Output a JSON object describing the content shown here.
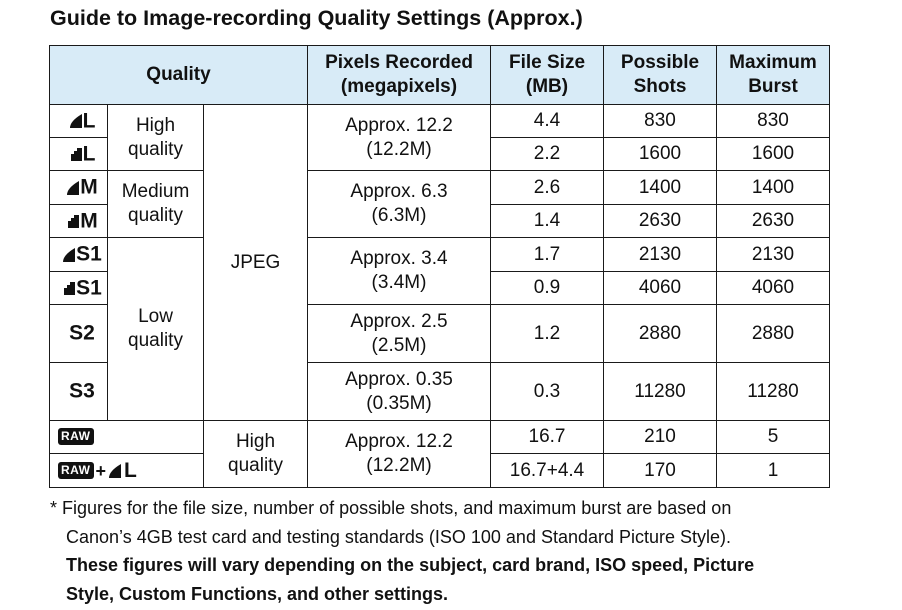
{
  "title": "Guide to Image-recording Quality Settings (Approx.)",
  "headers": {
    "quality": "Quality",
    "pixels_l1": "Pixels Recorded",
    "pixels_l2": "(megapixels)",
    "size_l1": "File Size",
    "size_l2": "(MB)",
    "shots_l1": "Possible",
    "shots_l2": "Shots",
    "burst_l1": "Maximum",
    "burst_l2": "Burst"
  },
  "quality_groups": {
    "high_l1": "High",
    "high_l2": "quality",
    "medium_l1": "Medium",
    "medium_l2": "quality",
    "low_l1": "Low",
    "low_l2": "quality",
    "format_jpeg": "JPEG",
    "raw_high_l1": "High",
    "raw_high_l2": "quality"
  },
  "icons": {
    "fine_large": "L",
    "normal_large": "L",
    "fine_medium": "M",
    "normal_medium": "M",
    "fine_s1": "S1",
    "normal_s1": "S1",
    "s2": "S2",
    "s3": "S3",
    "raw": "RAW",
    "raw_plus": "RAW",
    "plus": "+",
    "raw_plus_l": "L"
  },
  "pixels": {
    "large_l1": "Approx. 12.2",
    "large_l2": "(12.2M)",
    "medium_l1": "Approx. 6.3",
    "medium_l2": "(6.3M)",
    "s1_l1": "Approx. 3.4",
    "s1_l2": "(3.4M)",
    "s2_l1": "Approx. 2.5",
    "s2_l2": "(2.5M)",
    "s3_l1": "Approx. 0.35",
    "s3_l2": "(0.35M)",
    "raw_l1": "Approx. 12.2",
    "raw_l2": "(12.2M)"
  },
  "rows": [
    {
      "size": "4.4",
      "shots": "830",
      "burst": "830"
    },
    {
      "size": "2.2",
      "shots": "1600",
      "burst": "1600"
    },
    {
      "size": "2.6",
      "shots": "1400",
      "burst": "1400"
    },
    {
      "size": "1.4",
      "shots": "2630",
      "burst": "2630"
    },
    {
      "size": "1.7",
      "shots": "2130",
      "burst": "2130"
    },
    {
      "size": "0.9",
      "shots": "4060",
      "burst": "4060"
    },
    {
      "size": "1.2",
      "shots": "2880",
      "burst": "2880"
    },
    {
      "size": "0.3",
      "shots": "11280",
      "burst": "11280"
    },
    {
      "size": "16.7",
      "shots": "210",
      "burst": "5"
    },
    {
      "size": "16.7+4.4",
      "shots": "170",
      "burst": "1"
    }
  ],
  "footnote": {
    "l1": "* Figures for the file size, number of possible shots, and maximum burst are based on",
    "l2": "Canon’s 4GB test card and testing standards (ISO 100 and Standard Picture Style).",
    "l3": "These figures will vary depending on the subject, card brand, ISO speed, Picture",
    "l4": "Style, Custom Functions, and other settings."
  },
  "colors": {
    "header_bg": "#d8ebf7",
    "border": "#1a1a1a"
  }
}
